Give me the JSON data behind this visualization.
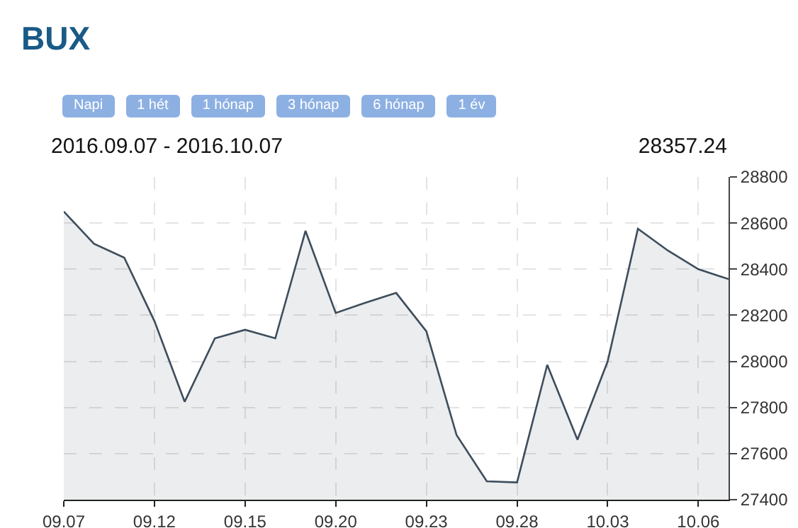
{
  "chart_data": {
    "type": "area",
    "title": "BUX",
    "subtitle": "2016.09.07 - 2016.10.07",
    "annotations": [
      "Napi",
      "1 hét",
      "1 hónap",
      "3 hónap",
      "6 hónap",
      "1 év",
      "28357.24"
    ],
    "categories": [
      "09.07",
      null,
      null,
      "09.12",
      null,
      null,
      "09.15",
      null,
      null,
      "09.20",
      null,
      null,
      "09.23",
      null,
      null,
      "09.28",
      null,
      null,
      "10.03",
      null,
      null,
      "10.06",
      null
    ],
    "series": [
      {
        "color": "#3d4d5c",
        "values": [
          28650,
          28510,
          28450,
          28175,
          27825,
          28100,
          28137,
          28100,
          28566,
          28210,
          28255,
          28297,
          28130,
          27680,
          27480,
          27475,
          27985,
          27660,
          28000,
          28575,
          28480,
          28400,
          28357
        ]
      }
    ],
    "ylim": [
      27400,
      28800
    ],
    "yticks": [
      27400,
      27600,
      27800,
      28000,
      28200,
      28400,
      28600,
      28800
    ],
    "grid": true,
    "marker": "none"
  }
}
